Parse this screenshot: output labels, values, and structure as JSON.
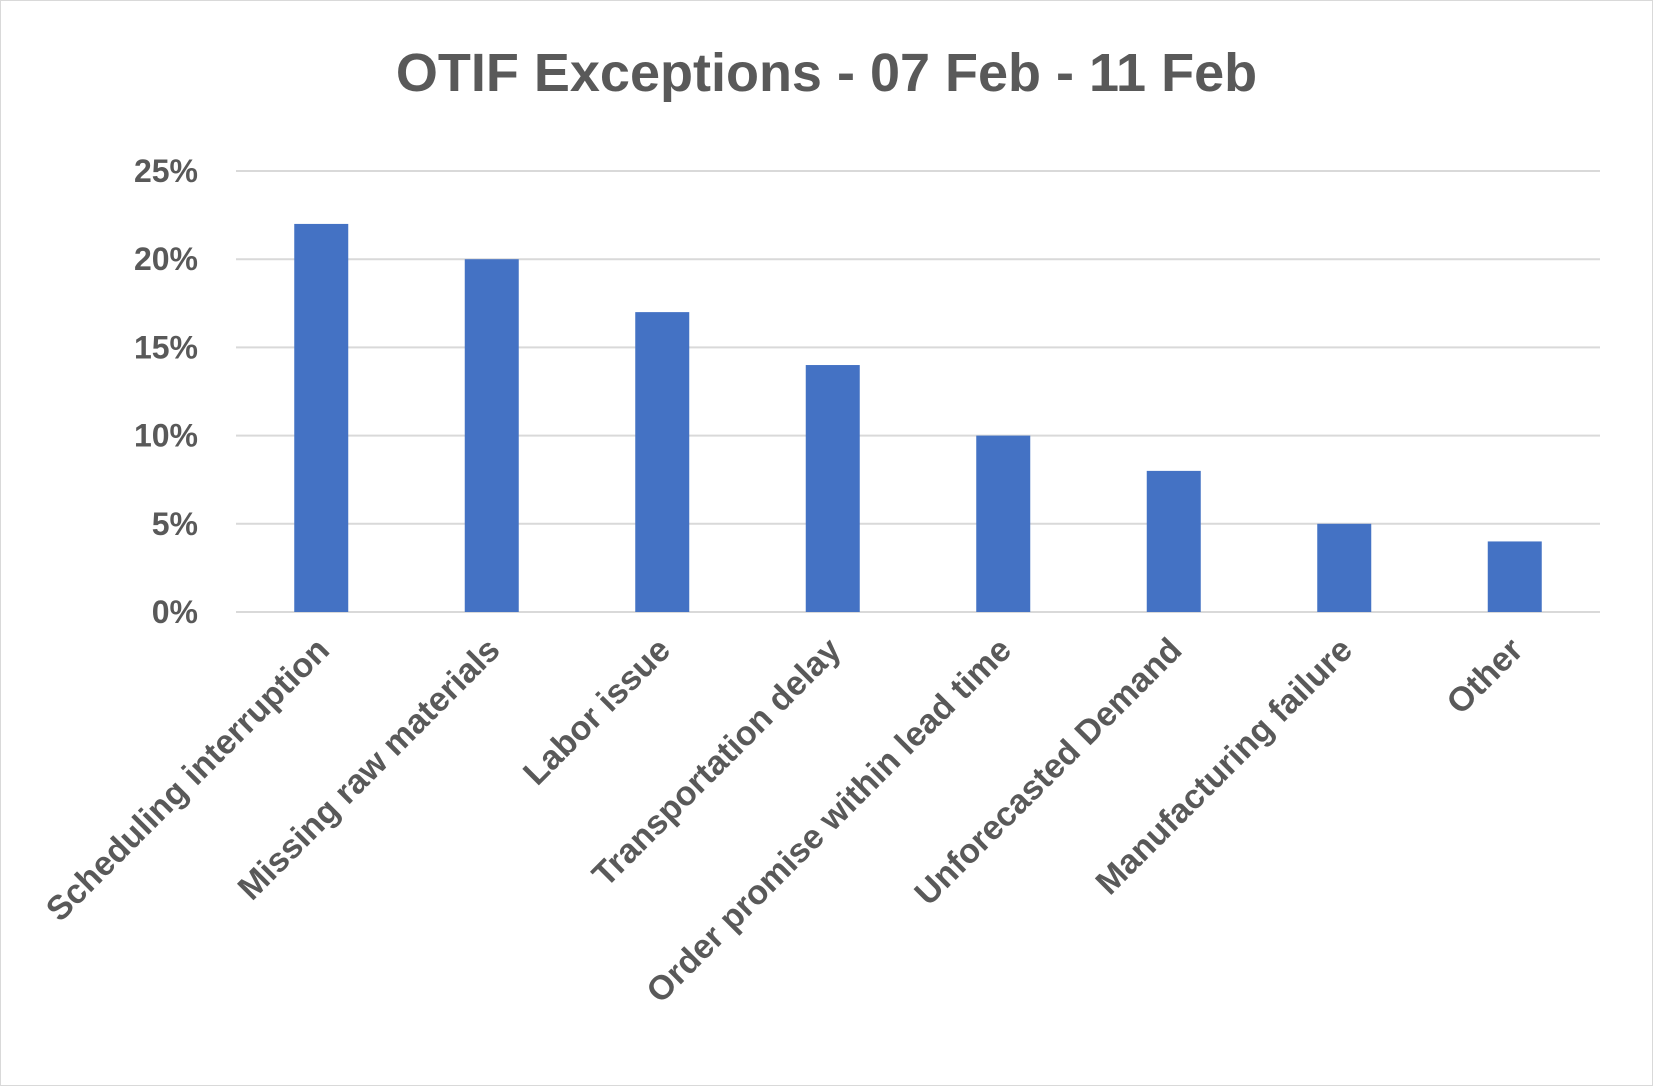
{
  "chart_data": {
    "type": "bar",
    "title": "OTIF Exceptions - 07 Feb - 11 Feb",
    "xlabel": "",
    "ylabel": "",
    "categories": [
      "Scheduling interruption",
      "Missing raw materials",
      "Labor issue",
      "Transportation delay",
      "Order promise within lead time",
      "Unforecasted Demand",
      "Manufacturing failure",
      "Other"
    ],
    "values": [
      0.22,
      0.2,
      0.17,
      0.14,
      0.1,
      0.08,
      0.05,
      0.04
    ],
    "ylim": [
      0,
      0.25
    ],
    "yticks": [
      {
        "value": 0,
        "label": "0%"
      },
      {
        "value": 0.05,
        "label": "5%"
      },
      {
        "value": 0.1,
        "label": "10%"
      },
      {
        "value": 0.15,
        "label": "15%"
      },
      {
        "value": 0.2,
        "label": "20%"
      },
      {
        "value": 0.25,
        "label": "25%"
      }
    ],
    "grid": true,
    "legend": "none",
    "bar_color": "#4472C4",
    "gridline_color": "#D9D9D9",
    "text_color": "#595959"
  }
}
